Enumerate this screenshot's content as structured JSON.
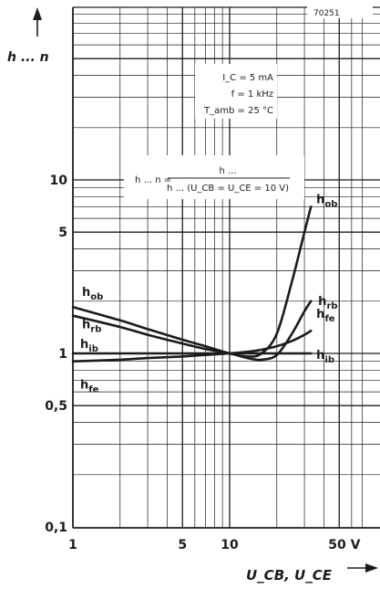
{
  "chart_data": {
    "type": "line",
    "figure_code": "70251",
    "ylabel": "h ... n",
    "xlabel": "U_CB, U_CE",
    "x_scale": "log",
    "y_scale": "log",
    "xlim": [
      1,
      70
    ],
    "ylim": [
      0.1,
      50
    ],
    "grid": true,
    "x_ticks": [
      {
        "value": 1,
        "label": "1"
      },
      {
        "value": 5,
        "label": "5"
      },
      {
        "value": 10,
        "label": "10"
      },
      {
        "value": 50,
        "label": "50 V"
      }
    ],
    "y_ticks": [
      {
        "value": 0.1,
        "label": "0,1"
      },
      {
        "value": 0.5,
        "label": "0,5"
      },
      {
        "value": 1,
        "label": "1"
      },
      {
        "value": 5,
        "label": "5"
      },
      {
        "value": 10,
        "label": "10"
      }
    ],
    "conditions": [
      "I_C = 5 mA",
      "f = 1 kHz",
      "T_amb = 25 °C"
    ],
    "formula": {
      "lhs": "h ... n =",
      "numerator": "h ...",
      "denominator": "h ... (U_CB = U_CE = 10 V)"
    },
    "series": [
      {
        "name": "h_ob",
        "x": [
          1,
          2,
          3,
          5,
          7,
          10,
          13,
          16,
          20,
          25,
          30,
          33
        ],
        "y": [
          1.85,
          1.55,
          1.38,
          1.2,
          1.1,
          1.0,
          0.96,
          1.0,
          1.3,
          2.6,
          5.0,
          7.0
        ]
      },
      {
        "name": "h_rb",
        "x": [
          1,
          2,
          3,
          5,
          7,
          10,
          13,
          16,
          20,
          25,
          30,
          33
        ],
        "y": [
          1.65,
          1.42,
          1.28,
          1.14,
          1.06,
          1.0,
          0.94,
          0.92,
          0.98,
          1.3,
          1.75,
          2.0
        ]
      },
      {
        "name": "h_fe",
        "x": [
          1,
          2,
          3,
          5,
          7,
          10,
          15,
          20,
          25,
          30,
          33
        ],
        "y": [
          0.9,
          0.92,
          0.94,
          0.96,
          0.98,
          1.0,
          1.04,
          1.1,
          1.18,
          1.28,
          1.35
        ]
      },
      {
        "name": "h_ib",
        "x": [
          1,
          3,
          5,
          10,
          15,
          20,
          25,
          30,
          33
        ],
        "y": [
          1.0,
          1.0,
          1.0,
          1.0,
          1.0,
          1.0,
          1.0,
          1.0,
          1.0
        ]
      }
    ]
  }
}
